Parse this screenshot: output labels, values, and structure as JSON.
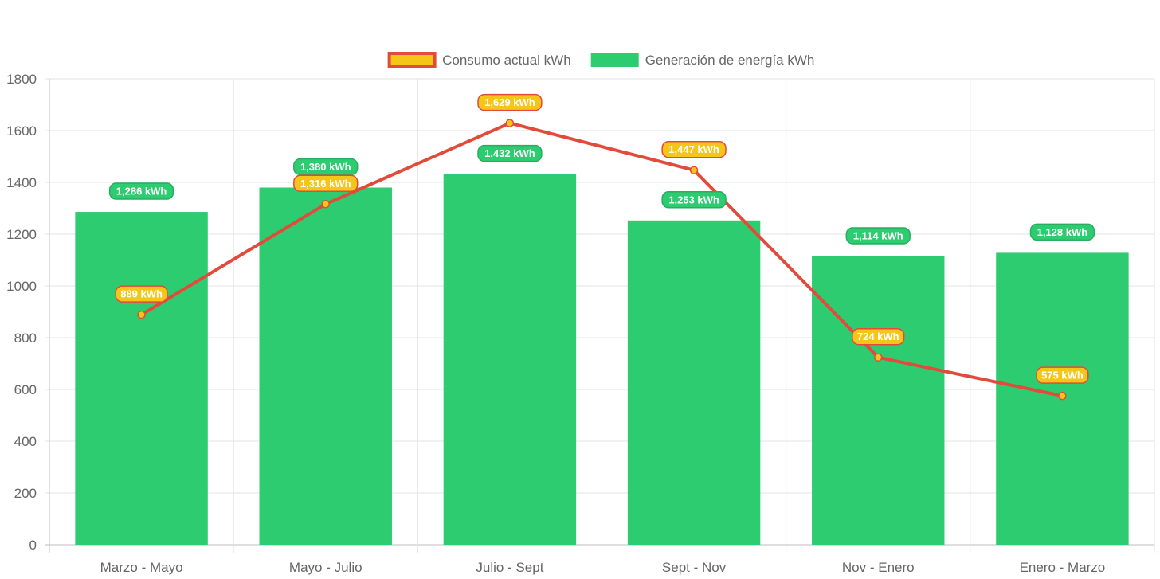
{
  "chart_data": {
    "type": "bar",
    "categories": [
      "Marzo - Mayo",
      "Mayo - Julio",
      "Julio - Sept",
      "Sept - Nov",
      "Nov - Enero",
      "Enero - Marzo"
    ],
    "series": [
      {
        "name": "Consumo actual kWh",
        "type": "line",
        "values": [
          889,
          1316,
          1629,
          1447,
          724,
          575
        ],
        "labels": [
          "889 kWh",
          "1,316 kWh",
          "1,629 kWh",
          "1,447 kWh",
          "724 kWh",
          "575 kWh"
        ],
        "color": "#e24b3b",
        "fill_color": "#f5c518"
      },
      {
        "name": "Generación de energía kWh",
        "type": "bar",
        "values": [
          1286,
          1380,
          1432,
          1253,
          1114,
          1128
        ],
        "labels": [
          "1,286 kWh",
          "1,380 kWh",
          "1,432 kWh",
          "1,253 kWh",
          "1,114 kWh",
          "1,128 kWh"
        ],
        "color": "#2ecc71",
        "border_color": "#27ae60"
      }
    ],
    "y_ticks": [
      "0",
      "200",
      "400",
      "600",
      "800",
      "1000",
      "1200",
      "1400",
      "1600",
      "1800"
    ],
    "ylim": [
      0,
      1800
    ],
    "grid": true,
    "legend_position": "top-center"
  }
}
